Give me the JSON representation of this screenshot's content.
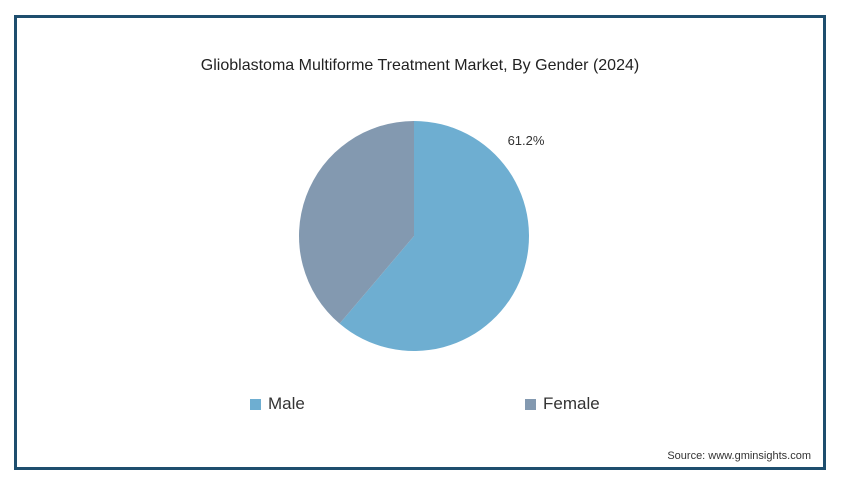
{
  "source_text": "Source: www.gminsights.com",
  "chart_data": {
    "type": "pie",
    "title": "Glioblastoma Multiforme Treatment Market, By Gender (2024)",
    "slices": [
      {
        "label": "Male",
        "value": 61.2,
        "data_label": "61.2%",
        "color": "#6eaed1"
      },
      {
        "label": "Female",
        "value": 38.8,
        "data_label": "",
        "color": "#8399b0"
      }
    ],
    "legend": {
      "position": "bottom",
      "entries": [
        "Male",
        "Female"
      ]
    }
  }
}
